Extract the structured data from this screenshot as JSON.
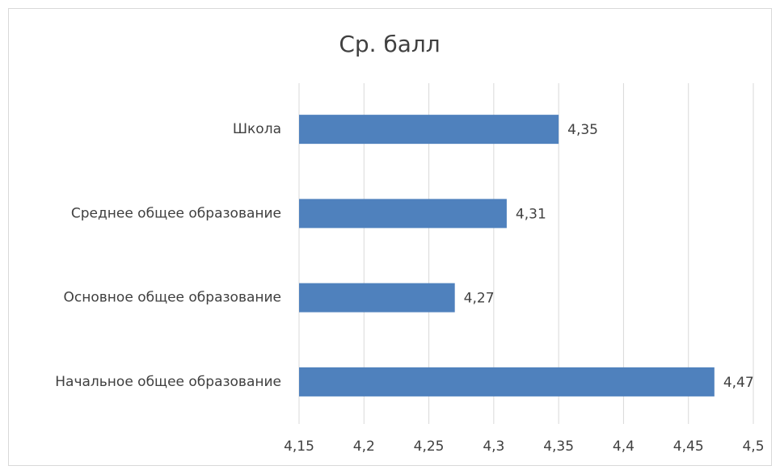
{
  "chart_data": {
    "type": "bar",
    "orientation": "horizontal",
    "title": "Ср. балл",
    "categories": [
      "Школа",
      "Среднее общее образование",
      "Основное общее образование",
      "Начальное общее образование"
    ],
    "values": [
      4.35,
      4.31,
      4.27,
      4.47
    ],
    "value_labels": [
      "4,35",
      "4,31",
      "4,27",
      "4,47"
    ],
    "color": "#4f81bd",
    "xlim": [
      4.15,
      4.5
    ],
    "xticks": [
      {
        "value": 4.15,
        "label": "4,15"
      },
      {
        "value": 4.2,
        "label": "4,2"
      },
      {
        "value": 4.25,
        "label": "4,25"
      },
      {
        "value": 4.3,
        "label": "4,3"
      },
      {
        "value": 4.35,
        "label": "4,35"
      },
      {
        "value": 4.4,
        "label": "4,4"
      },
      {
        "value": 4.45,
        "label": "4,45"
      },
      {
        "value": 4.5,
        "label": "4,5"
      }
    ],
    "grid": true
  }
}
